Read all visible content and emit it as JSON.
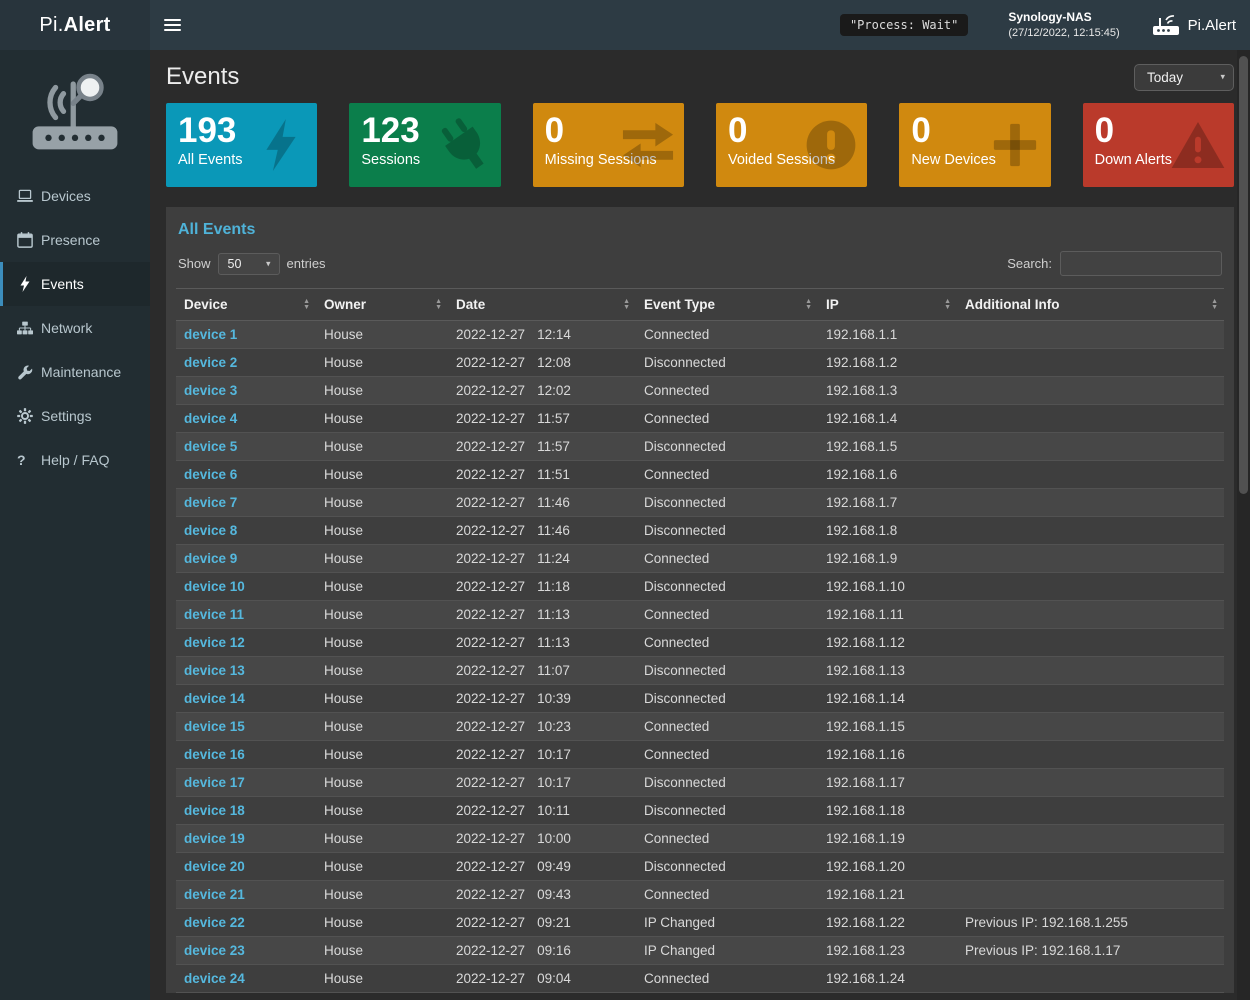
{
  "header": {
    "brand_prefix": "Pi.",
    "brand_suffix": "Alert",
    "process_badge": "\"Process: Wait\"",
    "nas_name": "Synology-NAS",
    "nas_time": "(27/12/2022, 12:15:45)",
    "right_brand": "Pi.Alert"
  },
  "sidebar": {
    "items": [
      {
        "label": "Devices",
        "icon": "laptop-icon",
        "active": false
      },
      {
        "label": "Presence",
        "icon": "calendar-icon",
        "active": false
      },
      {
        "label": "Events",
        "icon": "bolt-icon",
        "active": true
      },
      {
        "label": "Network",
        "icon": "network-icon",
        "active": false
      },
      {
        "label": "Maintenance",
        "icon": "wrench-icon",
        "active": false
      },
      {
        "label": "Settings",
        "icon": "gear-icon",
        "active": false
      },
      {
        "label": "Help / FAQ",
        "icon": "question-icon",
        "active": false
      }
    ]
  },
  "page": {
    "title": "Events",
    "period_select": "Today"
  },
  "cards": [
    {
      "value": "193",
      "label": "All Events",
      "color": "#0a98b8",
      "icon": "bolt-icon"
    },
    {
      "value": "123",
      "label": "Sessions",
      "color": "#0b7e4b",
      "icon": "plug-icon"
    },
    {
      "value": "0",
      "label": "Missing Sessions",
      "color": "#d0890f",
      "icon": "exchange-icon"
    },
    {
      "value": "0",
      "label": "Voided Sessions",
      "color": "#d0890f",
      "icon": "exclamation-icon"
    },
    {
      "value": "0",
      "label": "New Devices",
      "color": "#d0890f",
      "icon": "plus-icon"
    },
    {
      "value": "0",
      "label": "Down Alerts",
      "color": "#ba3a2b",
      "icon": "warning-icon"
    }
  ],
  "panel": {
    "title": "All Events",
    "show_label": "Show",
    "page_size": "50",
    "entries_label": "entries",
    "search_label": "Search:",
    "columns": [
      "Device",
      "Owner",
      "Date",
      "Event Type",
      "IP",
      "Additional Info"
    ],
    "rows": [
      {
        "device": "device 1",
        "owner": "House",
        "date": "2022-12-27",
        "time": "12:14",
        "event": "Connected",
        "ip": "192.168.1.1",
        "info": ""
      },
      {
        "device": "device 2",
        "owner": "House",
        "date": "2022-12-27",
        "time": "12:08",
        "event": "Disconnected",
        "ip": "192.168.1.2",
        "info": ""
      },
      {
        "device": "device 3",
        "owner": "House",
        "date": "2022-12-27",
        "time": "12:02",
        "event": "Connected",
        "ip": "192.168.1.3",
        "info": ""
      },
      {
        "device": "device 4",
        "owner": "House",
        "date": "2022-12-27",
        "time": "11:57",
        "event": "Connected",
        "ip": "192.168.1.4",
        "info": ""
      },
      {
        "device": "device 5",
        "owner": "House",
        "date": "2022-12-27",
        "time": "11:57",
        "event": "Disconnected",
        "ip": "192.168.1.5",
        "info": ""
      },
      {
        "device": "device 6",
        "owner": "House",
        "date": "2022-12-27",
        "time": "11:51",
        "event": "Connected",
        "ip": "192.168.1.6",
        "info": ""
      },
      {
        "device": "device 7",
        "owner": "House",
        "date": "2022-12-27",
        "time": "11:46",
        "event": "Disconnected",
        "ip": "192.168.1.7",
        "info": ""
      },
      {
        "device": "device 8",
        "owner": "House",
        "date": "2022-12-27",
        "time": "11:46",
        "event": "Disconnected",
        "ip": "192.168.1.8",
        "info": ""
      },
      {
        "device": "device 9",
        "owner": "House",
        "date": "2022-12-27",
        "time": "11:24",
        "event": "Connected",
        "ip": "192.168.1.9",
        "info": ""
      },
      {
        "device": "device 10",
        "owner": "House",
        "date": "2022-12-27",
        "time": "11:18",
        "event": "Disconnected",
        "ip": "192.168.1.10",
        "info": ""
      },
      {
        "device": "device 11",
        "owner": "House",
        "date": "2022-12-27",
        "time": "11:13",
        "event": "Connected",
        "ip": "192.168.1.11",
        "info": ""
      },
      {
        "device": "device 12",
        "owner": "House",
        "date": "2022-12-27",
        "time": "11:13",
        "event": "Connected",
        "ip": "192.168.1.12",
        "info": ""
      },
      {
        "device": "device 13",
        "owner": "House",
        "date": "2022-12-27",
        "time": "11:07",
        "event": "Disconnected",
        "ip": "192.168.1.13",
        "info": ""
      },
      {
        "device": "device 14",
        "owner": "House",
        "date": "2022-12-27",
        "time": "10:39",
        "event": "Disconnected",
        "ip": "192.168.1.14",
        "info": ""
      },
      {
        "device": "device 15",
        "owner": "House",
        "date": "2022-12-27",
        "time": "10:23",
        "event": "Connected",
        "ip": "192.168.1.15",
        "info": ""
      },
      {
        "device": "device 16",
        "owner": "House",
        "date": "2022-12-27",
        "time": "10:17",
        "event": "Connected",
        "ip": "192.168.1.16",
        "info": ""
      },
      {
        "device": "device 17",
        "owner": "House",
        "date": "2022-12-27",
        "time": "10:17",
        "event": "Disconnected",
        "ip": "192.168.1.17",
        "info": ""
      },
      {
        "device": "device 18",
        "owner": "House",
        "date": "2022-12-27",
        "time": "10:11",
        "event": "Disconnected",
        "ip": "192.168.1.18",
        "info": ""
      },
      {
        "device": "device 19",
        "owner": "House",
        "date": "2022-12-27",
        "time": "10:00",
        "event": "Connected",
        "ip": "192.168.1.19",
        "info": ""
      },
      {
        "device": "device 20",
        "owner": "House",
        "date": "2022-12-27",
        "time": "09:49",
        "event": "Disconnected",
        "ip": "192.168.1.20",
        "info": ""
      },
      {
        "device": "device 21",
        "owner": "House",
        "date": "2022-12-27",
        "time": "09:43",
        "event": "Connected",
        "ip": "192.168.1.21",
        "info": ""
      },
      {
        "device": "device 22",
        "owner": "House",
        "date": "2022-12-27",
        "time": "09:21",
        "event": "IP Changed",
        "ip": "192.168.1.22",
        "info": "Previous IP: 192.168.1.255"
      },
      {
        "device": "device 23",
        "owner": "House",
        "date": "2022-12-27",
        "time": "09:16",
        "event": "IP Changed",
        "ip": "192.168.1.23",
        "info": "Previous IP: 192.168.1.17"
      },
      {
        "device": "device 24",
        "owner": "House",
        "date": "2022-12-27",
        "time": "09:04",
        "event": "Connected",
        "ip": "192.168.1.24",
        "info": ""
      }
    ]
  }
}
